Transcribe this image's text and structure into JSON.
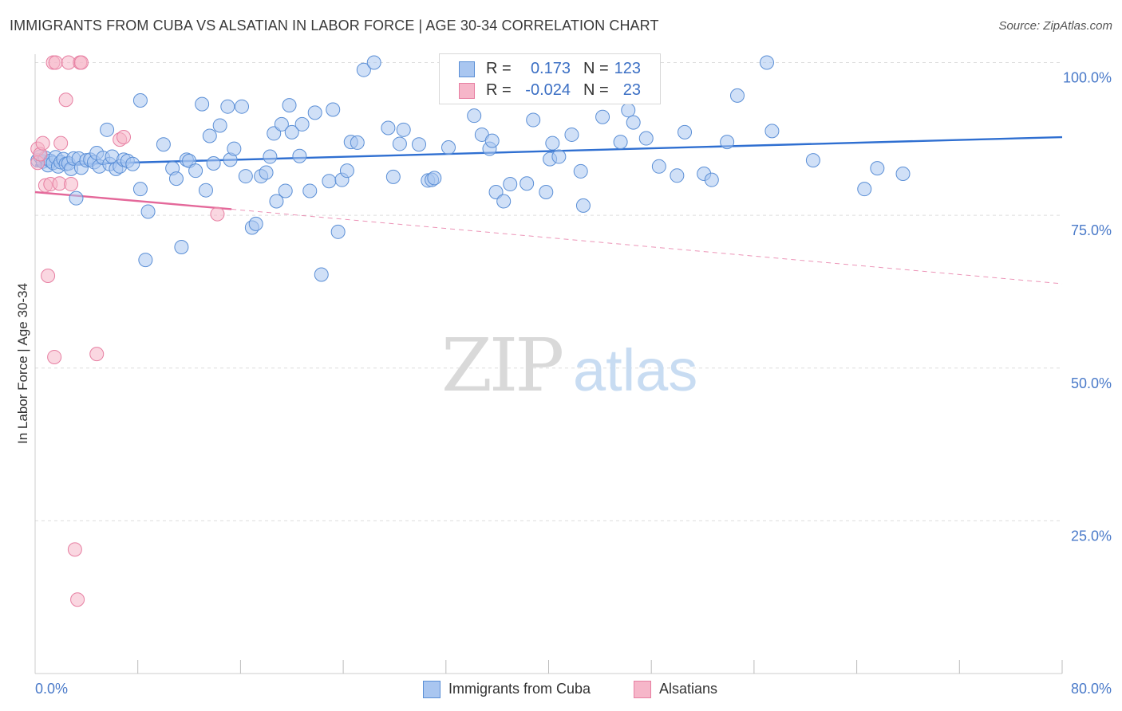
{
  "title": "IMMIGRANTS FROM CUBA VS ALSATIAN IN LABOR FORCE | AGE 30-34 CORRELATION CHART",
  "source": "Source: ZipAtlas.com",
  "watermark": {
    "zip": "ZIP",
    "atlas": "atlas"
  },
  "colors": {
    "blue_fill": "#a9c6f0",
    "blue_stroke": "#5b8fd6",
    "blue_line": "#2f6fd1",
    "pink_fill": "#f6b6c9",
    "pink_stroke": "#e77fa2",
    "pink_line": "#e4689a",
    "tick_text": "#4a7ac9",
    "grid": "#dddddd"
  },
  "legend_top": {
    "rows": [
      {
        "series": "Immigrants from Cuba",
        "r_label": "R =",
        "r_value": "0.173",
        "n_label": "N =",
        "n_value": "123"
      },
      {
        "series": "Alsatians",
        "r_label": "R =",
        "r_value": "-0.024",
        "n_label": "N =",
        "n_value": "23"
      }
    ]
  },
  "legend_bottom": {
    "items": [
      "Immigrants from Cuba",
      "Alsatians"
    ]
  },
  "chart_data": {
    "type": "scatter",
    "title": "IMMIGRANTS FROM CUBA VS ALSATIAN IN LABOR FORCE | AGE 30-34 CORRELATION CHART",
    "xlabel": "",
    "ylabel": "In Labor Force | Age 30-34",
    "xlim": [
      0,
      80
    ],
    "ylim": [
      0,
      100
    ],
    "x_tick_labels": [
      "0.0%",
      "80.0%"
    ],
    "y_ticks": [
      {
        "value": 100,
        "label": "100.0%"
      },
      {
        "value": 75,
        "label": "75.0%"
      },
      {
        "value": 50,
        "label": "50.0%"
      },
      {
        "value": 25,
        "label": "25.0%"
      }
    ],
    "grid": true,
    "series": [
      {
        "name": "Immigrants from Cuba",
        "color": "blue",
        "trend": {
          "x0": 0,
          "y0": 83.2,
          "x1": 80,
          "y1": 87.8,
          "style": "solid"
        },
        "points": [
          [
            0.2,
            84.0
          ],
          [
            0.4,
            84.6
          ],
          [
            0.6,
            83.8
          ],
          [
            0.8,
            84.4
          ],
          [
            1.0,
            83.2
          ],
          [
            1.2,
            83.9
          ],
          [
            1.4,
            83.6
          ],
          [
            1.6,
            84.5
          ],
          [
            1.8,
            83.0
          ],
          [
            2.0,
            83.7
          ],
          [
            2.2,
            84.2
          ],
          [
            2.4,
            83.4
          ],
          [
            2.6,
            83.5
          ],
          [
            2.8,
            82.6
          ],
          [
            3.0,
            84.3
          ],
          [
            3.2,
            77.8
          ],
          [
            3.4,
            84.3
          ],
          [
            3.6,
            82.8
          ],
          [
            4.0,
            84.0
          ],
          [
            4.3,
            84.1
          ],
          [
            4.6,
            83.7
          ],
          [
            4.8,
            85.2
          ],
          [
            5.0,
            83.0
          ],
          [
            5.3,
            84.4
          ],
          [
            5.6,
            89.0
          ],
          [
            5.8,
            83.4
          ],
          [
            6.0,
            84.6
          ],
          [
            6.3,
            82.6
          ],
          [
            6.6,
            83.0
          ],
          [
            6.9,
            84.1
          ],
          [
            7.2,
            83.9
          ],
          [
            7.6,
            83.4
          ],
          [
            8.2,
            79.3
          ],
          [
            8.6,
            67.7
          ],
          [
            8.8,
            75.6
          ],
          [
            8.2,
            93.8
          ],
          [
            10.0,
            86.6
          ],
          [
            10.7,
            82.7
          ],
          [
            11.0,
            81.0
          ],
          [
            11.4,
            69.8
          ],
          [
            11.8,
            84.1
          ],
          [
            12.0,
            83.9
          ],
          [
            12.5,
            82.3
          ],
          [
            13.0,
            93.2
          ],
          [
            13.3,
            79.1
          ],
          [
            13.6,
            88.0
          ],
          [
            13.9,
            83.5
          ],
          [
            14.4,
            89.7
          ],
          [
            15.0,
            92.8
          ],
          [
            15.2,
            84.1
          ],
          [
            15.5,
            85.9
          ],
          [
            16.1,
            92.8
          ],
          [
            16.4,
            81.4
          ],
          [
            16.9,
            73.0
          ],
          [
            17.2,
            73.6
          ],
          [
            17.6,
            81.4
          ],
          [
            18.0,
            82.0
          ],
          [
            18.3,
            84.6
          ],
          [
            18.6,
            88.4
          ],
          [
            18.8,
            77.3
          ],
          [
            19.2,
            89.9
          ],
          [
            19.5,
            79.0
          ],
          [
            19.8,
            93.0
          ],
          [
            20.0,
            88.6
          ],
          [
            20.6,
            84.7
          ],
          [
            20.8,
            89.9
          ],
          [
            21.4,
            79.0
          ],
          [
            21.8,
            91.8
          ],
          [
            22.3,
            65.3
          ],
          [
            22.9,
            80.6
          ],
          [
            23.2,
            92.3
          ],
          [
            23.6,
            72.3
          ],
          [
            23.9,
            80.8
          ],
          [
            24.3,
            82.3
          ],
          [
            24.6,
            87.0
          ],
          [
            25.1,
            86.9
          ],
          [
            25.6,
            98.8
          ],
          [
            26.4,
            100.0
          ],
          [
            27.5,
            89.3
          ],
          [
            27.9,
            81.3
          ],
          [
            28.4,
            86.7
          ],
          [
            28.7,
            89.0
          ],
          [
            29.9,
            86.6
          ],
          [
            30.6,
            80.7
          ],
          [
            30.9,
            80.8
          ],
          [
            31.1,
            81.1
          ],
          [
            32.2,
            86.1
          ],
          [
            34.2,
            91.3
          ],
          [
            34.8,
            88.2
          ],
          [
            35.4,
            85.9
          ],
          [
            35.6,
            87.2
          ],
          [
            35.9,
            78.8
          ],
          [
            36.5,
            77.3
          ],
          [
            37.0,
            80.1
          ],
          [
            38.3,
            80.2
          ],
          [
            38.8,
            90.6
          ],
          [
            39.8,
            78.8
          ],
          [
            40.1,
            84.2
          ],
          [
            40.3,
            86.8
          ],
          [
            40.8,
            84.6
          ],
          [
            41.8,
            88.2
          ],
          [
            42.5,
            82.2
          ],
          [
            42.7,
            76.6
          ],
          [
            44.2,
            91.1
          ],
          [
            45.6,
            87.0
          ],
          [
            46.2,
            92.2
          ],
          [
            46.6,
            90.2
          ],
          [
            47.6,
            87.6
          ],
          [
            48.6,
            83.0
          ],
          [
            50.0,
            81.5
          ],
          [
            50.6,
            88.6
          ],
          [
            52.1,
            81.8
          ],
          [
            52.7,
            80.8
          ],
          [
            53.9,
            87.0
          ],
          [
            54.7,
            94.6
          ],
          [
            57.0,
            100.0
          ],
          [
            57.4,
            88.8
          ],
          [
            60.6,
            84.0
          ],
          [
            64.6,
            79.3
          ],
          [
            65.6,
            82.7
          ],
          [
            67.6,
            81.8
          ]
        ]
      },
      {
        "name": "Alsatians",
        "color": "pink",
        "trend": {
          "x0": 0,
          "y0": 78.8,
          "x1": 15.3,
          "y1": 76.0,
          "style": "solid",
          "extended_to_x": 80,
          "extended_to_y": 63.8
        },
        "points": [
          [
            0.2,
            85.9
          ],
          [
            0.2,
            83.6
          ],
          [
            0.4,
            85.0
          ],
          [
            0.6,
            86.8
          ],
          [
            0.8,
            79.9
          ],
          [
            1.0,
            65.1
          ],
          [
            1.2,
            80.1
          ],
          [
            1.4,
            100.0
          ],
          [
            1.5,
            51.8
          ],
          [
            1.6,
            100.0
          ],
          [
            1.9,
            80.2
          ],
          [
            2.0,
            86.8
          ],
          [
            2.4,
            93.9
          ],
          [
            2.6,
            100.0
          ],
          [
            2.8,
            80.1
          ],
          [
            3.1,
            20.3
          ],
          [
            3.3,
            12.1
          ],
          [
            3.5,
            100.0
          ],
          [
            3.6,
            100.0
          ],
          [
            4.8,
            52.3
          ],
          [
            6.6,
            87.4
          ],
          [
            14.2,
            75.2
          ],
          [
            6.9,
            87.8
          ]
        ]
      }
    ]
  }
}
